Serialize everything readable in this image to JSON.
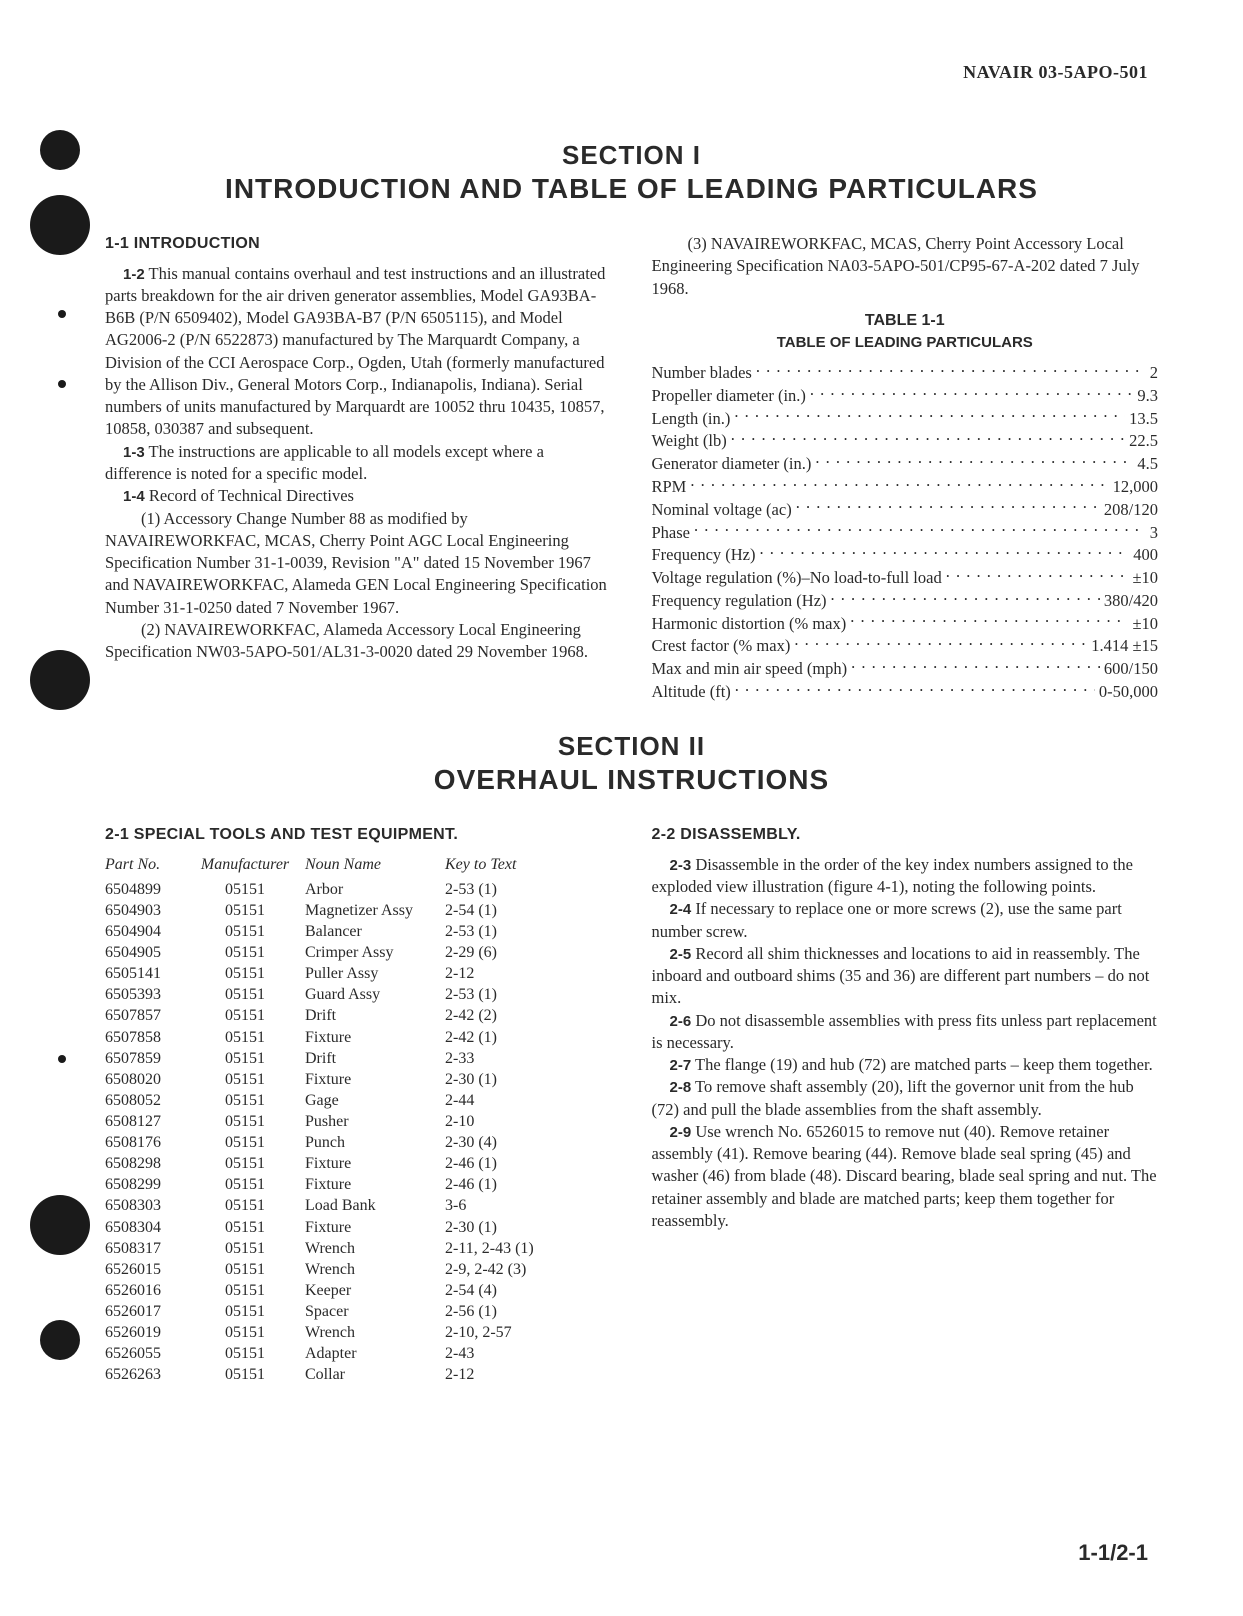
{
  "doc_number": "NAVAIR 03-5APO-501",
  "page_number": "1-1/2-1",
  "section1": {
    "label": "SECTION I",
    "title": "INTRODUCTION AND TABLE OF LEADING PARTICULARS",
    "h_intro": "1-1  INTRODUCTION",
    "p12_num": "1-2",
    "p12": " This manual contains overhaul and test instructions and an illustrated parts breakdown for the air driven generator assemblies, Model GA93BA-B6B (P/N 6509402), Model GA93BA-B7 (P/N 6505115), and Model AG2006-2 (P/N 6522873) manufactured by The Marquardt Company, a Division of the CCI Aerospace Corp., Ogden, Utah (formerly manufactured by the Allison Div., General Motors Corp., Indianapolis, Indiana). Serial numbers of units manufactured by Marquardt are 10052 thru 10435, 10857, 10858, 030387 and subsequent.",
    "p13_num": "1-3",
    "p13": " The instructions are applicable to all models except where a difference is noted for a specific model.",
    "p14_num": "1-4",
    "p14": " Record of Technical Directives",
    "sub1": "(1) Accessory Change Number 88 as modified by NAVAIREWORKFAC, MCAS, Cherry Point AGC Local Engineering Specification Number 31-1-0039, Revision \"A\" dated 15 November 1967 and NAVAIREWORKFAC, Alameda GEN Local Engineering Specification Number 31-1-0250 dated 7 November 1967.",
    "sub2": "(2) NAVAIREWORKFAC, Alameda Accessory Local Engineering Specification NW03-5APO-501/AL31-3-0020 dated 29 November 1968.",
    "sub3": "(3) NAVAIREWORKFAC, MCAS, Cherry Point Accessory Local Engineering Specification NA03-5APO-501/CP95-67-A-202 dated 7 July 1968.",
    "table1": {
      "title": "TABLE 1-1",
      "subtitle": "TABLE OF LEADING PARTICULARS",
      "rows": [
        {
          "label": "Number blades",
          "value": "2"
        },
        {
          "label": "Propeller diameter (in.)",
          "value": "9.3"
        },
        {
          "label": "Length (in.)",
          "value": "13.5"
        },
        {
          "label": "Weight (lb)",
          "value": "22.5"
        },
        {
          "label": "Generator diameter (in.)",
          "value": "4.5"
        },
        {
          "label": "RPM",
          "value": "12,000"
        },
        {
          "label": "Nominal voltage (ac)",
          "value": "208/120"
        },
        {
          "label": "Phase",
          "value": "3"
        },
        {
          "label": "Frequency (Hz)",
          "value": "400"
        },
        {
          "label": "Voltage regulation (%)–No load-to-full load",
          "value": "±10"
        },
        {
          "label": "Frequency regulation (Hz)",
          "value": "380/420"
        },
        {
          "label": "Harmonic distortion (% max)",
          "value": "±10"
        },
        {
          "label": "Crest factor (% max)",
          "value": "1.414 ±15"
        },
        {
          "label": "Max and min air speed (mph)",
          "value": "600/150"
        },
        {
          "label": "Altitude (ft)",
          "value": "0-50,000"
        }
      ]
    }
  },
  "section2": {
    "label": "SECTION II",
    "title": "OVERHAUL INSTRUCTIONS",
    "h_tools": "2-1  SPECIAL TOOLS AND TEST EQUIPMENT.",
    "h_disasm": "2-2  DISASSEMBLY.",
    "tools": {
      "headers": [
        "Part No.",
        "Manufacturer",
        "Noun Name",
        "Key to Text"
      ],
      "rows": [
        [
          "6504899",
          "05151",
          "Arbor",
          "2-53 (1)"
        ],
        [
          "6504903",
          "05151",
          "Magnetizer Assy",
          "2-54 (1)"
        ],
        [
          "6504904",
          "05151",
          "Balancer",
          "2-53 (1)"
        ],
        [
          "6504905",
          "05151",
          "Crimper Assy",
          "2-29 (6)"
        ],
        [
          "6505141",
          "05151",
          "Puller Assy",
          "2-12"
        ],
        [
          "6505393",
          "05151",
          "Guard Assy",
          "2-53 (1)"
        ],
        [
          "6507857",
          "05151",
          "Drift",
          "2-42 (2)"
        ],
        [
          "6507858",
          "05151",
          "Fixture",
          "2-42 (1)"
        ],
        [
          "6507859",
          "05151",
          "Drift",
          "2-33"
        ],
        [
          "6508020",
          "05151",
          "Fixture",
          "2-30 (1)"
        ],
        [
          "6508052",
          "05151",
          "Gage",
          "2-44"
        ],
        [
          "6508127",
          "05151",
          "Pusher",
          "2-10"
        ],
        [
          "6508176",
          "05151",
          "Punch",
          "2-30 (4)"
        ],
        [
          "6508298",
          "05151",
          "Fixture",
          "2-46 (1)"
        ],
        [
          "6508299",
          "05151",
          "Fixture",
          "2-46 (1)"
        ],
        [
          "6508303",
          "05151",
          "Load Bank",
          "3-6"
        ],
        [
          "6508304",
          "05151",
          "Fixture",
          "2-30 (1)"
        ],
        [
          "6508317",
          "05151",
          "Wrench",
          "2-11, 2-43 (1)"
        ],
        [
          "6526015",
          "05151",
          "Wrench",
          "2-9, 2-42 (3)"
        ],
        [
          "6526016",
          "05151",
          "Keeper",
          "2-54 (4)"
        ],
        [
          "6526017",
          "05151",
          "Spacer",
          "2-56 (1)"
        ],
        [
          "6526019",
          "05151",
          "Wrench",
          "2-10, 2-57"
        ],
        [
          "6526055",
          "05151",
          "Adapter",
          "2-43"
        ],
        [
          "6526263",
          "05151",
          "Collar",
          "2-12"
        ]
      ]
    },
    "p23_num": "2-3",
    "p23": " Disassemble in the order of the key index numbers assigned to the exploded view illustration (figure 4-1), noting the following points.",
    "p24_num": "2-4",
    "p24": " If necessary to replace one or more screws (2), use the same part number screw.",
    "p25_num": "2-5",
    "p25": " Record all shim thicknesses and locations to aid in reassembly. The inboard and outboard shims (35 and 36) are different part numbers – do not mix.",
    "p26_num": "2-6",
    "p26": " Do not disassemble assemblies with press fits unless part replacement is necessary.",
    "p27_num": "2-7",
    "p27": " The flange (19) and hub (72) are matched parts – keep them together.",
    "p28_num": "2-8",
    "p28": " To remove shaft assembly (20), lift the governor unit from the hub (72) and pull the blade assemblies from the shaft assembly.",
    "p29_num": "2-9",
    "p29": " Use wrench No. 6526015 to remove nut (40). Remove retainer assembly (41). Remove bearing (44). Remove blade seal spring (45) and washer (46) from blade (48). Discard bearing, blade seal spring and nut. The retainer assembly and blade are matched parts; keep them together for reassembly."
  }
}
